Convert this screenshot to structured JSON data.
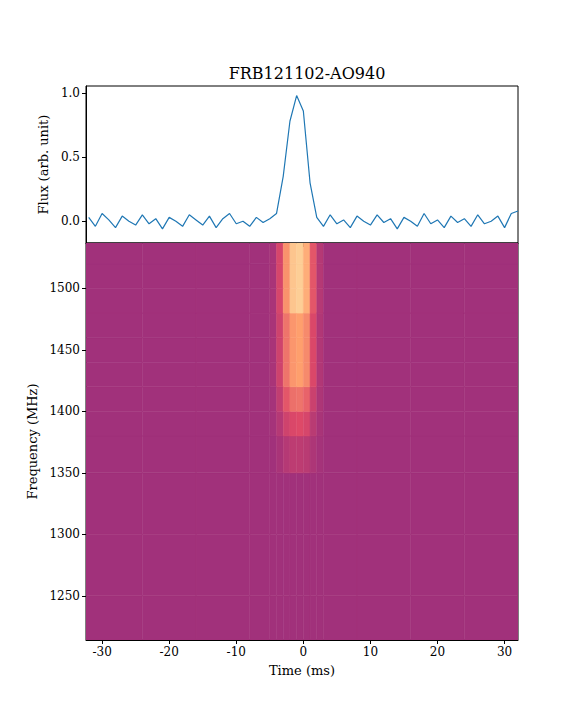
{
  "chart_data": [
    {
      "type": "line",
      "title": "FRB121102-AO940",
      "y_label": "Flux (arb. unit)",
      "color": "#1f77b4",
      "x": [
        -32,
        -31,
        -30,
        -29,
        -28,
        -27,
        -26,
        -25,
        -24,
        -23,
        -22,
        -21,
        -20,
        -19,
        -18,
        -17,
        -16,
        -15,
        -14,
        -13,
        -12,
        -11,
        -10,
        -9,
        -8,
        -7,
        -6,
        -5,
        -4,
        -3,
        -2,
        -1,
        0,
        1,
        2,
        3,
        4,
        5,
        6,
        7,
        8,
        9,
        10,
        11,
        12,
        13,
        14,
        15,
        16,
        17,
        18,
        19,
        20,
        21,
        22,
        23,
        24,
        25,
        26,
        27,
        28,
        29,
        30,
        31,
        32
      ],
      "values": [
        0.03,
        -0.04,
        0.06,
        0.01,
        -0.05,
        0.04,
        0.0,
        -0.03,
        0.05,
        -0.02,
        0.02,
        -0.06,
        0.03,
        0.0,
        -0.04,
        0.05,
        0.01,
        -0.03,
        0.04,
        -0.05,
        0.02,
        0.06,
        -0.02,
        0.0,
        -0.04,
        0.03,
        -0.01,
        0.02,
        0.06,
        0.35,
        0.78,
        0.98,
        0.86,
        0.3,
        0.03,
        -0.04,
        0.05,
        -0.02,
        0.01,
        -0.05,
        0.04,
        0.0,
        -0.03,
        0.05,
        -0.01,
        0.02,
        -0.06,
        0.03,
        0.0,
        -0.04,
        0.06,
        -0.02,
        0.01,
        -0.05,
        0.04,
        -0.01,
        0.02,
        -0.04,
        0.05,
        -0.02,
        0.0,
        0.04,
        -0.05,
        0.06,
        0.08
      ],
      "xlim": [
        -32.4,
        32.0
      ],
      "xticks": [
        -30,
        -20,
        -10,
        0,
        10,
        20,
        30
      ],
      "ylim": [
        -0.17,
        1.055
      ],
      "yticks": [
        {
          "value": 0,
          "label": "0.0"
        },
        {
          "value": 0.5,
          "label": "0.5"
        },
        {
          "value": 1,
          "label": "1.0"
        }
      ],
      "tick_labels": "y"
    },
    {
      "type": "heatmap",
      "x_label": "Time (ms)",
      "y_label": "Frequency (MHz)",
      "time_edges": [
        -32.4,
        -24,
        -16,
        -8,
        -5,
        -4,
        -3,
        -2,
        -1,
        0,
        1,
        2,
        3,
        8,
        16,
        24,
        32.0
      ],
      "freq_edges": [
        1214,
        1250,
        1300,
        1350,
        1380,
        1400,
        1420,
        1440,
        1460,
        1480,
        1500,
        1520,
        1537
      ],
      "intensity": [
        [
          0.45,
          0.45,
          0.45,
          0.45,
          0.45,
          0.45,
          0.45,
          0.45,
          0.45,
          0.45,
          0.45,
          0.45,
          0.45,
          0.45,
          0.45,
          0.45
        ],
        [
          0.45,
          0.45,
          0.45,
          0.45,
          0.45,
          0.45,
          0.45,
          0.45,
          0.45,
          0.45,
          0.45,
          0.45,
          0.45,
          0.45,
          0.45,
          0.45
        ],
        [
          0.45,
          0.45,
          0.45,
          0.45,
          0.45,
          0.45,
          0.45,
          0.45,
          0.45,
          0.45,
          0.45,
          0.45,
          0.45,
          0.45,
          0.45,
          0.45
        ],
        [
          0.45,
          0.45,
          0.45,
          0.45,
          0.45,
          0.47,
          0.5,
          0.52,
          0.52,
          0.51,
          0.48,
          0.46,
          0.45,
          0.45,
          0.45,
          0.45
        ],
        [
          0.45,
          0.45,
          0.45,
          0.45,
          0.46,
          0.5,
          0.56,
          0.59,
          0.6,
          0.58,
          0.51,
          0.47,
          0.45,
          0.45,
          0.45,
          0.45
        ],
        [
          0.45,
          0.45,
          0.45,
          0.45,
          0.46,
          0.53,
          0.63,
          0.69,
          0.7,
          0.66,
          0.55,
          0.48,
          0.45,
          0.45,
          0.45,
          0.45
        ],
        [
          0.45,
          0.45,
          0.45,
          0.45,
          0.47,
          0.56,
          0.7,
          0.78,
          0.8,
          0.75,
          0.59,
          0.49,
          0.45,
          0.45,
          0.45,
          0.45
        ],
        [
          0.45,
          0.45,
          0.45,
          0.45,
          0.47,
          0.56,
          0.7,
          0.78,
          0.8,
          0.75,
          0.59,
          0.49,
          0.45,
          0.45,
          0.45,
          0.45
        ],
        [
          0.45,
          0.45,
          0.45,
          0.45,
          0.47,
          0.56,
          0.7,
          0.78,
          0.8,
          0.75,
          0.59,
          0.49,
          0.45,
          0.45,
          0.45,
          0.45
        ],
        [
          0.45,
          0.45,
          0.45,
          0.45,
          0.47,
          0.58,
          0.77,
          0.88,
          0.9,
          0.83,
          0.63,
          0.5,
          0.45,
          0.45,
          0.45,
          0.45
        ],
        [
          0.45,
          0.45,
          0.45,
          0.45,
          0.47,
          0.58,
          0.77,
          0.88,
          0.9,
          0.83,
          0.63,
          0.5,
          0.45,
          0.45,
          0.45,
          0.45
        ],
        [
          0.45,
          0.45,
          0.45,
          0.45,
          0.47,
          0.58,
          0.77,
          0.88,
          0.9,
          0.83,
          0.63,
          0.5,
          0.45,
          0.45,
          0.45,
          0.45
        ]
      ],
      "intensity_range": [
        0,
        1
      ],
      "xlim": [
        -32.4,
        32.0
      ],
      "xticks": [
        -30,
        -20,
        -10,
        0,
        10,
        20,
        30
      ],
      "ylim": [
        1214,
        1537
      ],
      "yticks": [
        1250,
        1300,
        1350,
        1400,
        1450,
        1500
      ]
    }
  ]
}
